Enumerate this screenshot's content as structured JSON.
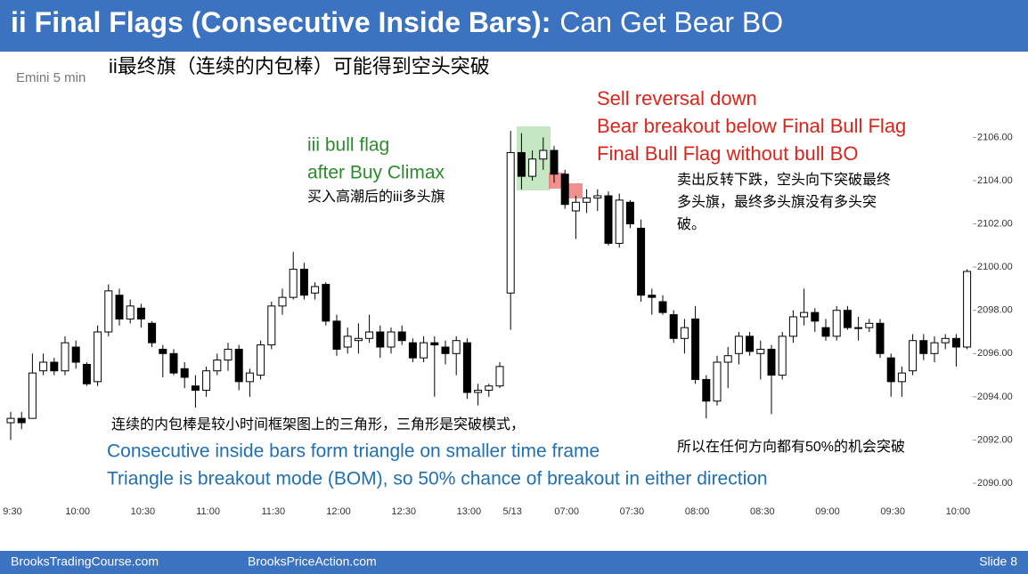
{
  "header": {
    "title": [
      "ii Final Flags (Consecutive Inside Bars):",
      "Can Get Bear BO"
    ]
  },
  "chart_data": {
    "type": "candlestick",
    "instrument": "Emini 5 min",
    "subtitle": "ii最终旗（连续的内包棒）可能得到空头突破",
    "annotations": {
      "sell": [
        "Sell reversal down",
        "Bear breakout below Final Bull Flag",
        "Final Bull Flag without bull BO"
      ],
      "sell_cn": [
        "卖出反转下跌，空头向下突破最终",
        "多头旗，最终多头旗没有多头突",
        "破。"
      ],
      "flag": [
        "iii bull flag",
        "after Buy Climax"
      ],
      "flag_cn": "买入高潮后的iii多头旗",
      "bottom_cn": "连续的内包棒是较小时间框架图上的三角形，三角形是突破模式，",
      "bottom": [
        "Consecutive inside bars form triangle on smaller time frame",
        "Triangle is breakout mode (BOM), so 50% chance of breakout in either direction"
      ],
      "bottom_cn_right": "所以在任何方向都有50%的机会突破"
    },
    "up_color": "#ffffff",
    "down_color": "#000000",
    "categories": [
      "9:30",
      null,
      null,
      null,
      null,
      null,
      "10:00",
      null,
      null,
      null,
      null,
      null,
      "10:30",
      null,
      null,
      null,
      null,
      null,
      "11:00",
      null,
      null,
      null,
      null,
      null,
      "11:30",
      null,
      null,
      null,
      null,
      null,
      "12:00",
      null,
      null,
      null,
      null,
      null,
      "12:30",
      null,
      null,
      null,
      null,
      null,
      "13:00",
      null,
      null,
      null,
      "5/13",
      null,
      null,
      null,
      null,
      "07:00",
      null,
      null,
      null,
      null,
      null,
      "07:30",
      null,
      null,
      null,
      null,
      null,
      "08:00",
      null,
      null,
      null,
      null,
      null,
      "08:30",
      null,
      null,
      null,
      null,
      null,
      "09:00",
      null,
      null,
      null,
      null,
      null,
      "09:30",
      null,
      null,
      null,
      null,
      null,
      "10:00",
      null
    ],
    "open": [
      2092.8,
      2093.0,
      2093.0,
      2095.2,
      2095.6,
      2095.2,
      2096.3,
      2095.5,
      2094.7,
      2097.0,
      2098.7,
      2097.6,
      2098.1,
      2097.4,
      2096.2,
      2096.0,
      2095.3,
      2094.5,
      2094.3,
      2095.2,
      2095.7,
      2096.2,
      2094.7,
      2095.0,
      2096.4,
      2098.2,
      2098.6,
      2099.9,
      2098.8,
      2099.2,
      2097.5,
      2096.3,
      2096.6,
      2096.7,
      2097.0,
      2096.3,
      2097.0,
      2096.5,
      2095.8,
      2096.5,
      2096.3,
      2096.0,
      2096.5,
      2094.2,
      2094.3,
      2094.5,
      2098.8,
      2105.3,
      2104.2,
      2105.0,
      2105.4,
      2104.3,
      2102.6,
      2103.0,
      2103.2,
      2103.3,
      2101.1,
      2103.0,
      2101.8,
      2098.7,
      2098.4,
      2097.8,
      2096.7,
      2097.6,
      2094.8,
      2093.8,
      2095.6,
      2096.0,
      2096.8,
      2096.0,
      2096.2,
      2095.0,
      2096.8,
      2097.7,
      2097.9,
      2097.2,
      2096.8,
      2098.0,
      2097.2,
      2097.2,
      2097.4,
      2095.8,
      2094.7,
      2095.2,
      2096.6,
      2096.0,
      2096.5,
      2096.7,
      2096.3
    ],
    "high": [
      2093.3,
      2093.3,
      2096.0,
      2096.0,
      2095.8,
      2096.8,
      2096.6,
      2095.6,
      2097.3,
      2099.2,
      2099.0,
      2098.5,
      2098.3,
      2097.5,
      2096.4,
      2096.2,
      2095.6,
      2095.0,
      2095.4,
      2096.0,
      2096.5,
      2096.4,
      2095.3,
      2096.6,
      2098.4,
      2099.0,
      2100.7,
      2100.2,
      2099.3,
      2099.3,
      2097.8,
      2097.2,
      2097.4,
      2097.8,
      2097.3,
      2097.2,
      2097.3,
      2096.7,
      2096.8,
      2096.8,
      2096.6,
      2096.8,
      2096.7,
      2094.6,
      2094.6,
      2095.6,
      2106.3,
      2106.2,
      2105.4,
      2106.0,
      2105.6,
      2104.5,
      2103.3,
      2103.6,
      2103.6,
      2103.5,
      2103.4,
      2103.1,
      2102.2,
      2099.0,
      2098.7,
      2098.0,
      2097.6,
      2098.2,
      2095.0,
      2095.9,
      2096.3,
      2097.0,
      2097.0,
      2096.6,
      2096.4,
      2097.0,
      2098.0,
      2099.0,
      2098.1,
      2097.6,
      2098.2,
      2098.2,
      2097.7,
      2097.6,
      2097.6,
      2096.0,
      2095.4,
      2096.9,
      2096.9,
      2096.8,
      2096.9,
      2096.9,
      2099.9
    ],
    "low": [
      2092.0,
      2092.5,
      2093.0,
      2095.0,
      2095.0,
      2095.0,
      2095.3,
      2094.5,
      2094.5,
      2096.8,
      2097.3,
      2097.4,
      2097.2,
      2096.3,
      2094.9,
      2095.0,
      2094.4,
      2093.5,
      2094.0,
      2095.0,
      2095.2,
      2094.3,
      2094.0,
      2094.8,
      2096.2,
      2097.8,
      2098.5,
      2098.5,
      2098.5,
      2097.3,
      2095.9,
      2096.0,
      2096.0,
      2096.5,
      2095.8,
      2096.0,
      2096.4,
      2095.6,
      2095.6,
      2094.0,
      2095.5,
      2095.0,
      2093.9,
      2093.6,
      2094.0,
      2094.4,
      2097.1,
      2103.6,
      2104.0,
      2104.5,
      2103.9,
      2102.7,
      2101.3,
      2102.5,
      2102.6,
      2101.0,
      2100.9,
      2101.8,
      2098.4,
      2097.8,
      2097.8,
      2096.5,
      2096.0,
      2094.6,
      2093.0,
      2093.6,
      2094.4,
      2095.5,
      2095.9,
      2094.8,
      2093.2,
      2094.8,
      2096.5,
      2097.3,
      2097.0,
      2096.6,
      2096.6,
      2097.1,
      2096.6,
      2097.0,
      2095.8,
      2094.0,
      2094.0,
      2095.0,
      2095.7,
      2095.6,
      2096.2,
      2095.4,
      2096.2
    ],
    "close": [
      2093.0,
      2092.8,
      2095.1,
      2095.6,
      2095.2,
      2096.5,
      2095.6,
      2094.6,
      2097.0,
      2098.9,
      2097.6,
      2098.2,
      2097.6,
      2096.5,
      2096.0,
      2095.1,
      2094.9,
      2094.3,
      2095.2,
      2095.7,
      2096.2,
      2094.7,
      2095.1,
      2096.4,
      2098.2,
      2098.6,
      2099.9,
      2098.7,
      2099.1,
      2097.5,
      2096.2,
      2096.8,
      2096.7,
      2097.0,
      2096.3,
      2097.0,
      2096.6,
      2095.8,
      2096.5,
      2096.4,
      2096.0,
      2096.6,
      2094.2,
      2094.3,
      2094.5,
      2095.4,
      2105.3,
      2104.2,
      2105.0,
      2105.4,
      2104.3,
      2102.9,
      2103.0,
      2103.2,
      2103.3,
      2101.1,
      2103.1,
      2102.0,
      2098.7,
      2098.6,
      2097.9,
      2096.7,
      2097.2,
      2094.8,
      2093.8,
      2095.6,
      2095.9,
      2096.8,
      2096.1,
      2096.2,
      2095.0,
      2096.8,
      2097.7,
      2097.9,
      2097.5,
      2096.8,
      2098.0,
      2097.2,
      2097.2,
      2097.4,
      2096.0,
      2094.7,
      2095.1,
      2096.6,
      2096.0,
      2096.5,
      2096.7,
      2096.3,
      2099.8
    ],
    "ylim": [
      2089.3,
      2106.8
    ],
    "yticks": [
      {
        "value": 2090,
        "label": "2090.00"
      },
      {
        "value": 2092,
        "label": "2092.00"
      },
      {
        "value": 2094,
        "label": "2094.00"
      },
      {
        "value": 2096,
        "label": "2096.00"
      },
      {
        "value": 2098,
        "label": "2098.00"
      },
      {
        "value": 2100,
        "label": "2100.00"
      },
      {
        "value": 2102,
        "label": "2102.00"
      },
      {
        "value": 2104,
        "label": "2104.00"
      },
      {
        "value": 2106,
        "label": "2106.00"
      }
    ]
  },
  "footer": {
    "left": "BrooksTradingCourse.com",
    "center": "BrooksPriceAction.com",
    "right": "Slide  8"
  }
}
